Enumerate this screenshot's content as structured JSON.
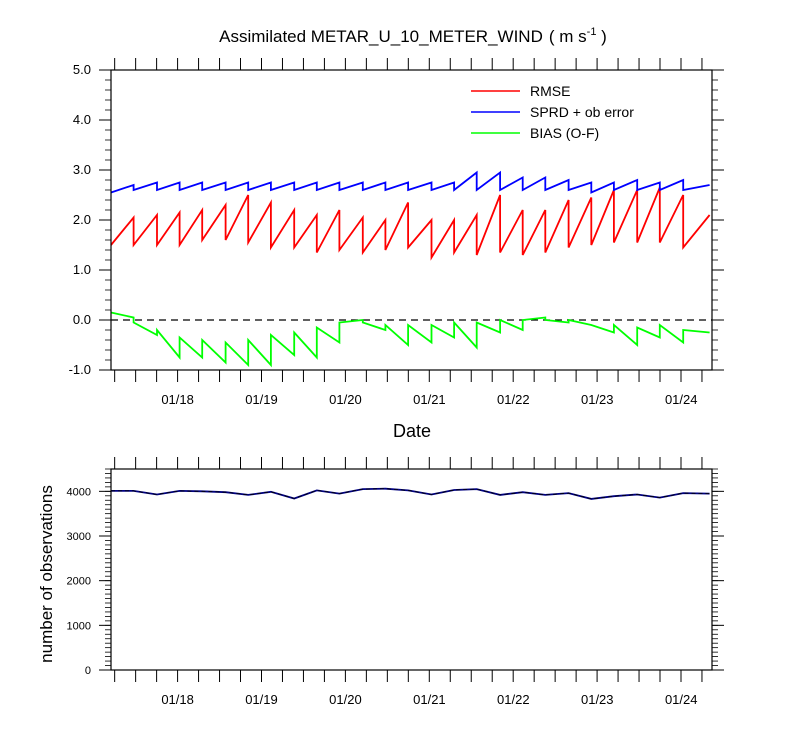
{
  "colors": {
    "rmse": "#ff0000",
    "sprd": "#0000ff",
    "bias": "#00ff00",
    "obs": "#000080",
    "axis": "#000000"
  },
  "chart_data": [
    {
      "type": "line",
      "title": "Assimilated METAR_U_10_METER_WIND",
      "title_units": "( m s",
      "title_units_exp": "-1",
      "title_units_close": " )",
      "xlabel": "Date",
      "ylabel": "",
      "ylim": [
        -1.0,
        5.0
      ],
      "xlim": [
        0,
        100
      ],
      "yticks": [
        -1.0,
        0.0,
        1.0,
        2.0,
        3.0,
        4.0,
        5.0
      ],
      "ytick_labels": [
        "-1.0",
        "0.0",
        "1.0",
        "2.0",
        "3.0",
        "4.0",
        "5.0"
      ],
      "xtick_labels": [
        "01/18",
        "01/19",
        "01/20",
        "01/21",
        "01/22",
        "01/23",
        "01/24"
      ],
      "xtick_positions": [
        11.08,
        25.04,
        39.01,
        52.98,
        66.94,
        80.91,
        94.88
      ],
      "zero_line": 0.0,
      "legend_location": "top-right",
      "series": [
        {
          "name": "RMSE",
          "color_key": "rmse",
          "x": [
            0,
            3.76,
            3.76,
            7.66,
            7.66,
            11.42,
            11.42,
            15.18,
            15.18,
            19.07,
            19.07,
            22.83,
            22.83,
            26.6,
            26.6,
            30.49,
            30.49,
            34.25,
            34.25,
            38.01,
            38.01,
            41.9,
            41.9,
            45.66,
            45.66,
            49.44,
            49.44,
            53.33,
            53.33,
            57.09,
            57.09,
            60.85,
            60.85,
            64.74,
            64.74,
            68.5,
            68.5,
            72.26,
            72.26,
            76.14,
            76.14,
            79.92,
            79.92,
            83.67,
            83.67,
            87.56,
            87.56,
            91.32,
            91.32,
            95.21,
            95.21,
            99.6
          ],
          "values": [
            1.5,
            2.05,
            1.5,
            2.1,
            1.5,
            2.15,
            1.5,
            2.2,
            1.6,
            2.3,
            1.6,
            2.5,
            1.55,
            2.35,
            1.45,
            2.2,
            1.45,
            2.1,
            1.35,
            2.2,
            1.4,
            2.05,
            1.35,
            2.0,
            1.4,
            2.35,
            1.45,
            2.0,
            1.25,
            2.0,
            1.35,
            2.1,
            1.3,
            2.5,
            1.35,
            2.2,
            1.3,
            2.2,
            1.35,
            2.4,
            1.45,
            2.45,
            1.5,
            2.6,
            1.55,
            2.6,
            1.55,
            2.65,
            1.55,
            2.5,
            1.45,
            2.1
          ]
        },
        {
          "name": "SPRD + ob error",
          "color_key": "sprd",
          "x": [
            0,
            3.76,
            3.76,
            7.66,
            7.66,
            11.42,
            11.42,
            15.18,
            15.18,
            19.07,
            19.07,
            22.83,
            22.83,
            26.6,
            26.6,
            30.49,
            30.49,
            34.25,
            34.25,
            38.01,
            38.01,
            41.9,
            41.9,
            45.66,
            45.66,
            49.44,
            49.44,
            53.33,
            53.33,
            57.09,
            57.09,
            60.85,
            60.85,
            64.74,
            64.74,
            68.5,
            68.5,
            72.26,
            72.26,
            76.14,
            76.14,
            79.92,
            79.92,
            83.67,
            83.67,
            87.56,
            87.56,
            91.32,
            91.32,
            95.21,
            95.21,
            99.6
          ],
          "values": [
            2.55,
            2.7,
            2.6,
            2.75,
            2.6,
            2.75,
            2.6,
            2.75,
            2.6,
            2.75,
            2.6,
            2.75,
            2.6,
            2.75,
            2.6,
            2.75,
            2.6,
            2.75,
            2.6,
            2.75,
            2.6,
            2.75,
            2.6,
            2.75,
            2.6,
            2.75,
            2.6,
            2.75,
            2.6,
            2.75,
            2.6,
            2.95,
            2.6,
            2.95,
            2.6,
            2.85,
            2.6,
            2.85,
            2.6,
            2.8,
            2.6,
            2.75,
            2.55,
            2.75,
            2.6,
            2.8,
            2.6,
            2.75,
            2.6,
            2.8,
            2.6,
            2.7
          ]
        },
        {
          "name": "BIAS (O-F)",
          "color_key": "bias",
          "x": [
            0,
            3.76,
            3.76,
            7.66,
            7.66,
            11.42,
            11.42,
            15.18,
            15.18,
            19.07,
            19.07,
            22.83,
            22.83,
            26.6,
            26.6,
            30.49,
            30.49,
            34.25,
            34.25,
            38.01,
            38.01,
            41.9,
            41.9,
            45.66,
            45.66,
            49.44,
            49.44,
            53.33,
            53.33,
            57.09,
            57.09,
            60.85,
            60.85,
            64.74,
            64.74,
            68.5,
            68.5,
            72.26,
            72.26,
            76.14,
            76.14,
            79.92,
            79.92,
            83.67,
            83.67,
            87.56,
            87.56,
            91.32,
            91.32,
            95.21,
            95.21,
            99.6
          ],
          "values": [
            0.15,
            0.05,
            -0.05,
            -0.3,
            -0.2,
            -0.75,
            -0.35,
            -0.75,
            -0.4,
            -0.85,
            -0.45,
            -0.9,
            -0.4,
            -0.9,
            -0.3,
            -0.7,
            -0.25,
            -0.75,
            -0.15,
            -0.45,
            -0.05,
            0.0,
            -0.05,
            -0.2,
            -0.1,
            -0.5,
            -0.1,
            -0.45,
            -0.1,
            -0.35,
            -0.05,
            -0.55,
            -0.05,
            -0.25,
            0.0,
            -0.2,
            0.0,
            0.05,
            0.0,
            -0.05,
            0.0,
            -0.1,
            -0.1,
            -0.25,
            -0.1,
            -0.5,
            -0.15,
            -0.35,
            -0.1,
            -0.45,
            -0.2,
            -0.25
          ]
        }
      ]
    },
    {
      "type": "line",
      "title": "",
      "xlabel": "",
      "ylabel": "number of observations",
      "ylim": [
        0,
        4500
      ],
      "xlim": [
        0,
        100
      ],
      "yticks": [
        0,
        1000,
        2000,
        3000,
        4000
      ],
      "ytick_labels": [
        "0",
        "1000",
        "2000",
        "3000",
        "4000"
      ],
      "xtick_labels": [
        "01/18",
        "01/19",
        "01/20",
        "01/21",
        "01/22",
        "01/23",
        "01/24"
      ],
      "xtick_positions": [
        11.08,
        25.04,
        39.01,
        52.98,
        66.94,
        80.91,
        94.88
      ],
      "series": [
        {
          "name": "observations",
          "color_key": "obs",
          "x": [
            0,
            3.76,
            7.66,
            11.42,
            15.18,
            19.07,
            22.83,
            26.6,
            30.49,
            34.25,
            38.01,
            41.9,
            45.66,
            49.44,
            53.33,
            57.09,
            60.85,
            64.74,
            68.5,
            72.26,
            76.14,
            79.92,
            83.67,
            87.56,
            91.32,
            95.21,
            99.6
          ],
          "values": [
            4010,
            4010,
            3930,
            4010,
            4000,
            3980,
            3920,
            3990,
            3840,
            4020,
            3950,
            4050,
            4060,
            4020,
            3930,
            4030,
            4050,
            3920,
            3980,
            3920,
            3960,
            3830,
            3890,
            3930,
            3860,
            3960,
            3950
          ]
        }
      ]
    }
  ],
  "legend": {
    "rmse": "RMSE",
    "sprd": "SPRD + ob error",
    "bias": "BIAS (O-F)"
  }
}
